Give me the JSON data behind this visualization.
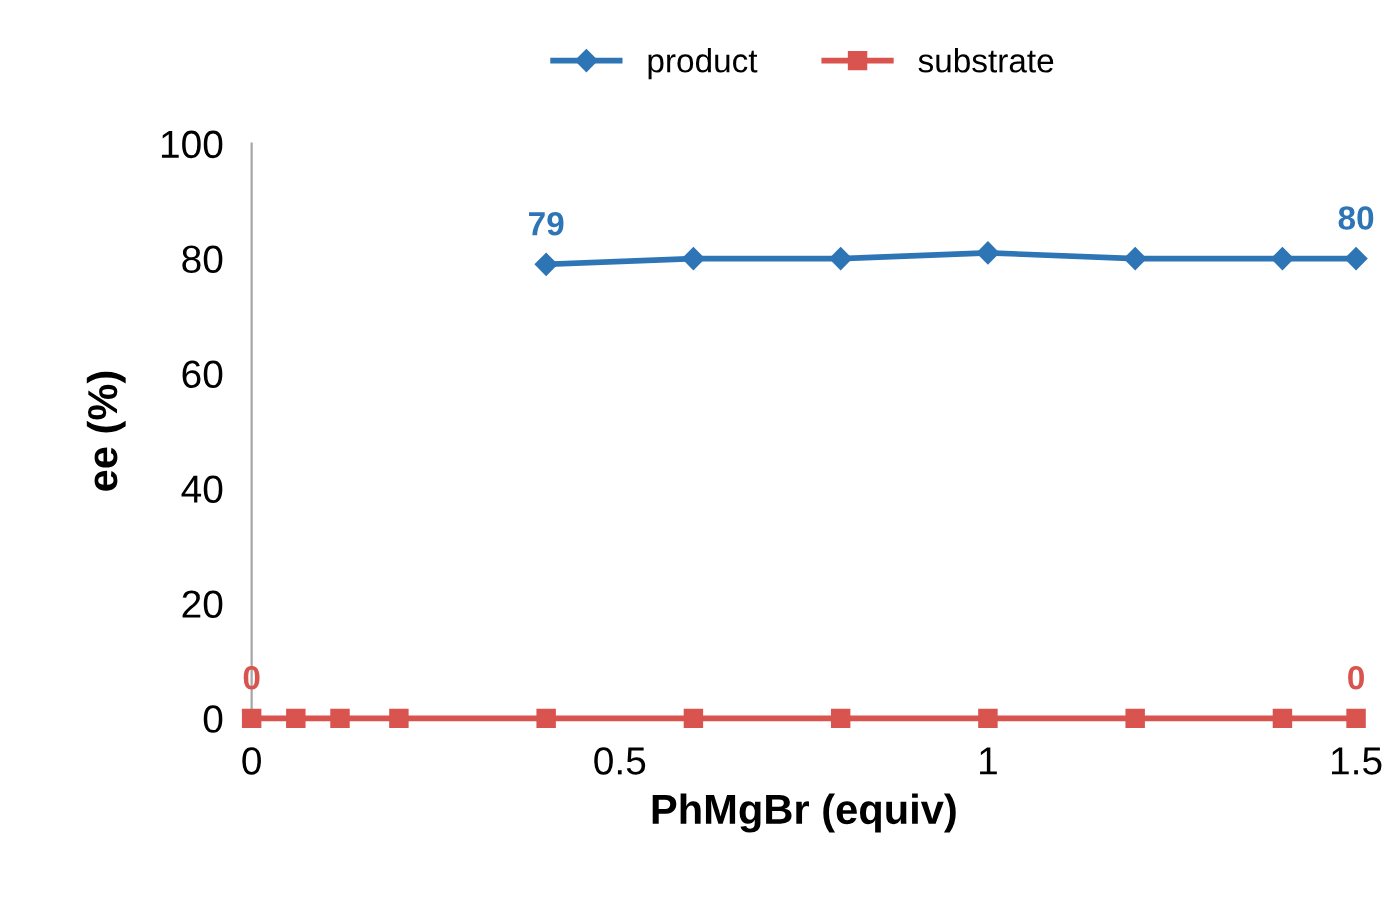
{
  "chart_data": {
    "type": "line",
    "xlabel": "PhMgBr (equiv)",
    "ylabel": "ee (%)",
    "xlim": [
      0,
      1.5
    ],
    "xticks": [
      0,
      {
        "value": 0.5,
        "label": "0.5"
      },
      1,
      {
        "value": 1.5,
        "label": "1.5"
      }
    ],
    "ylim": [
      0,
      100
    ],
    "yticks": [
      0,
      20,
      40,
      60,
      80,
      100
    ],
    "grid": false,
    "legend": "top",
    "series": [
      {
        "name": "product",
        "color": "#2e75b6",
        "marker": "diamond",
        "x": [
          0.4,
          0.6,
          0.8,
          1.0,
          1.2,
          1.4,
          1.5
        ],
        "values": [
          79,
          80,
          80,
          81,
          80,
          80,
          80
        ],
        "value_labels": [
          "79",
          null,
          null,
          null,
          null,
          null,
          "80"
        ]
      },
      {
        "name": "substrate",
        "color": "#d9534f",
        "marker": "square",
        "x": [
          0,
          0.06,
          0.12,
          0.2,
          0.4,
          0.6,
          0.8,
          1.0,
          1.2,
          1.4,
          1.5
        ],
        "values": [
          0,
          0,
          0,
          0,
          0,
          0,
          0,
          0,
          0,
          0,
          0
        ],
        "value_labels": [
          "0",
          null,
          null,
          null,
          null,
          null,
          null,
          null,
          null,
          null,
          "0"
        ]
      }
    ]
  }
}
